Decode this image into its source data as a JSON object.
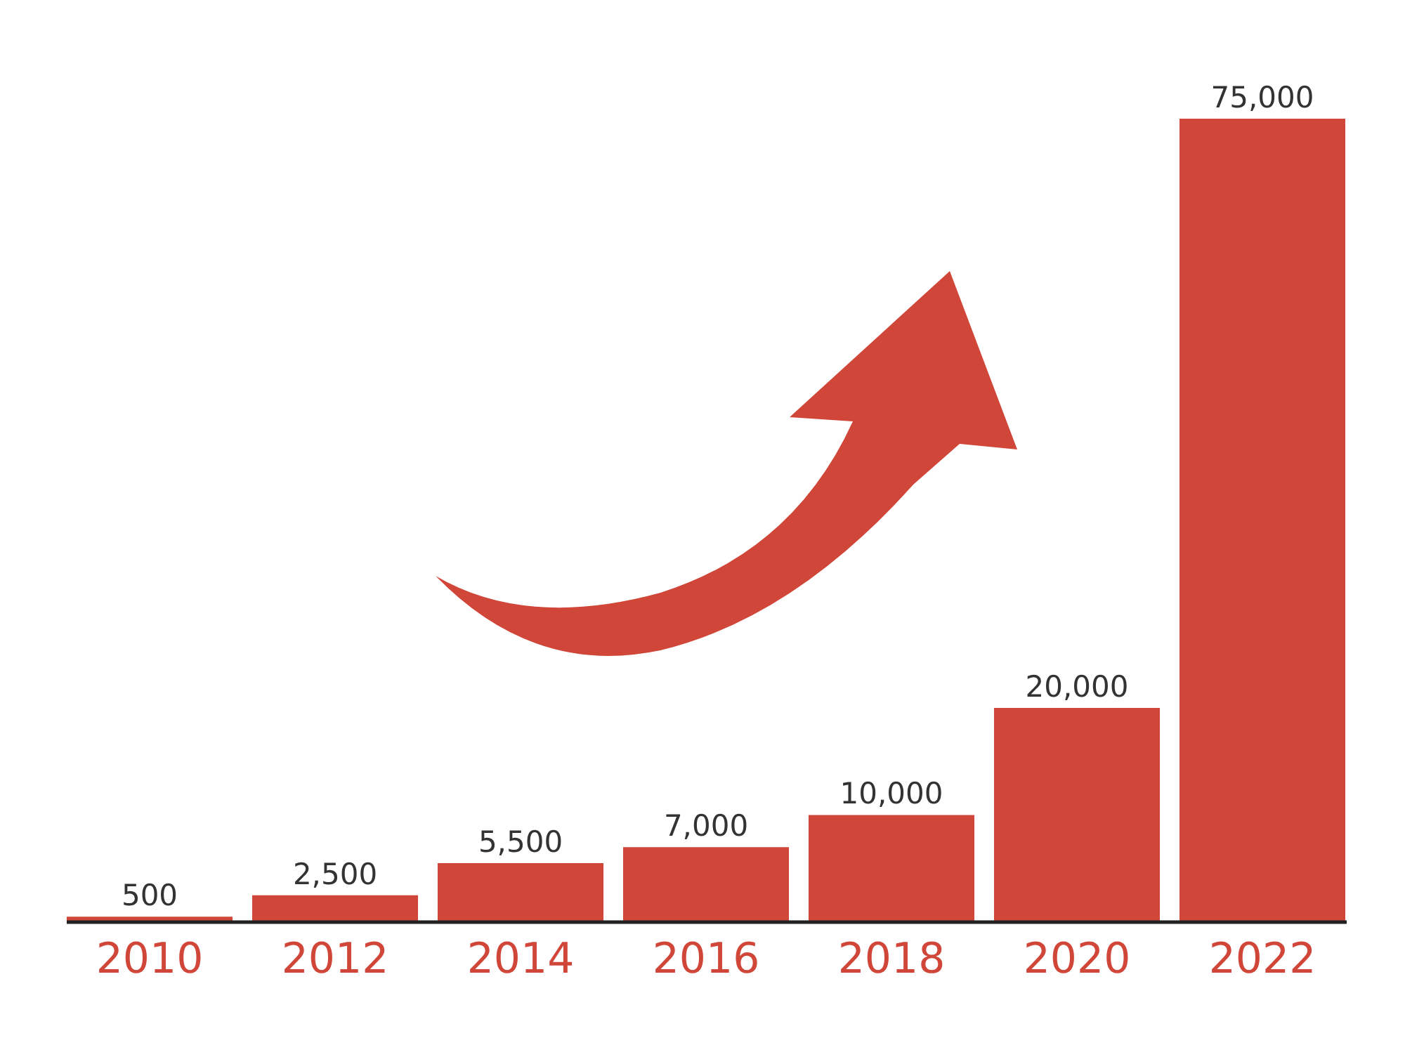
{
  "chart_data": {
    "type": "bar",
    "categories": [
      "2010",
      "2012",
      "2014",
      "2016",
      "2018",
      "2020",
      "2022"
    ],
    "values": [
      500,
      2500,
      5500,
      7000,
      10000,
      20000,
      75000
    ],
    "value_labels": [
      "500",
      "2,500",
      "5,500",
      "7,000",
      "10,000",
      "20,000",
      "75,000"
    ],
    "color": "#d0473a",
    "grid": false
  }
}
